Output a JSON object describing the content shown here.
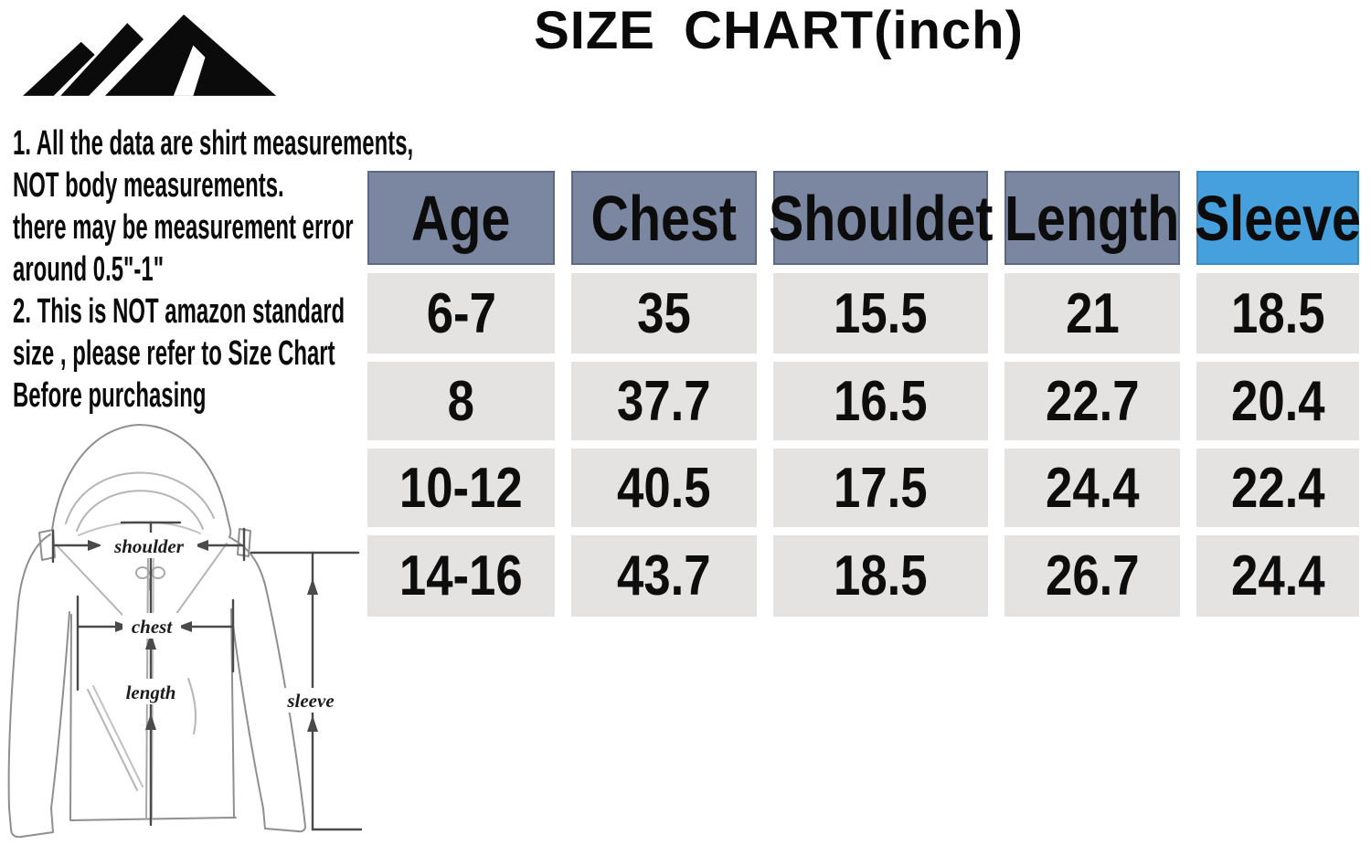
{
  "title": "SIZE CHART(inch)",
  "logo": {
    "icon": "mountain-range-icon"
  },
  "notes": {
    "lines": [
      "1. All the data are shirt measurements,",
      "NOT body measurements.",
      "there may be measurement error",
      "around 0.5\"-1\"",
      "2. This is NOT amazon standard",
      "size , please refer to Size Chart",
      "Before purchasing"
    ]
  },
  "diagram": {
    "labels": {
      "shoulder": "shoulder",
      "chest": "chest",
      "length": "length",
      "sleeve": "sleeve"
    }
  },
  "table": {
    "headers": [
      {
        "label": "Age",
        "bg": "#7b87a1",
        "border": "#5d6a85"
      },
      {
        "label": "Chest",
        "bg": "#7b87a1",
        "border": "#5d6a85"
      },
      {
        "label": "Shouldet",
        "bg": "#7b87a1",
        "border": "#5d6a85"
      },
      {
        "label": "Length",
        "bg": "#7b87a1",
        "border": "#5d6a85"
      },
      {
        "label": "Sleeve",
        "bg": "#45a0dd",
        "border": "#3a8cc4"
      }
    ],
    "rows": [
      [
        "6-7",
        "35",
        "15.5",
        "21",
        "18.5"
      ],
      [
        "8",
        "37.7",
        "16.5",
        "22.7",
        "20.4"
      ],
      [
        "10-12",
        "40.5",
        "17.5",
        "24.4",
        "22.4"
      ],
      [
        "14-16",
        "43.7",
        "18.5",
        "26.7",
        "24.4"
      ]
    ]
  },
  "chart_data": {
    "type": "table",
    "title": "SIZE CHART(inch)",
    "columns": [
      "Age",
      "Chest",
      "Shouldet",
      "Length",
      "Sleeve"
    ],
    "rows": [
      [
        "6-7",
        35,
        15.5,
        21,
        18.5
      ],
      [
        "8",
        37.7,
        16.5,
        22.7,
        20.4
      ],
      [
        "10-12",
        40.5,
        17.5,
        24.4,
        22.4
      ],
      [
        "14-16",
        43.7,
        18.5,
        26.7,
        24.4
      ]
    ],
    "units": "inch",
    "highlight_column": "Sleeve"
  },
  "colors": {
    "header_bg": "#7b87a1",
    "sleeve_header_bg": "#45a0dd",
    "row_bg": "#e4e3e2",
    "text": "#0d0d0d"
  }
}
